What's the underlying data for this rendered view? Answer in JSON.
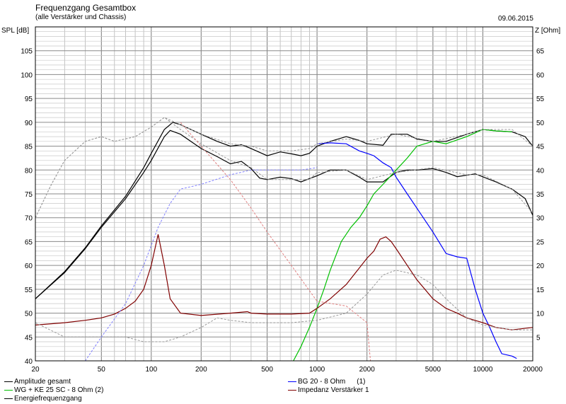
{
  "header": {
    "title": "Frequenzgang Gesamtbox",
    "subtitle": "(alle Verstärker und Chassis)",
    "date": "09.06.2015"
  },
  "chart_data": {
    "type": "line",
    "xscale": "log",
    "xlim": [
      20,
      20000
    ],
    "ylim_left": [
      40,
      110
    ],
    "ylim_right": [
      0,
      70
    ],
    "ylabel_left": "SPL [dB]",
    "ylabel_right": "Z [Ohm]",
    "x_ticks": [
      20,
      50,
      100,
      200,
      500,
      1000,
      2000,
      5000,
      10000,
      20000
    ],
    "x_tick_labels": [
      "20",
      "50",
      "100",
      "200",
      "500",
      "1000",
      "2000",
      "5000",
      "10000",
      "20000"
    ],
    "y_ticks_left": [
      40,
      45,
      50,
      55,
      60,
      65,
      70,
      75,
      80,
      85,
      90,
      95,
      100,
      105
    ],
    "y_tick_labels_left": [
      "40",
      "45",
      "50",
      "55",
      "60",
      "65",
      "70",
      "75",
      "80",
      "85",
      "90",
      "95",
      "100",
      "105"
    ],
    "y_ticks_right": [
      5,
      10,
      15,
      20,
      25,
      30,
      35,
      40,
      45,
      50,
      55,
      60,
      65
    ],
    "y_tick_labels_right": [
      "5",
      "10",
      "15",
      "20",
      "25",
      "30",
      "35",
      "40",
      "45",
      "50",
      "55",
      "60",
      "65"
    ],
    "grid": true,
    "legend_position": "bottom",
    "legend": [
      {
        "label": "Amplitude gesamt",
        "color": "#000000"
      },
      {
        "label": "BG 20 - 8 Ohm",
        "suffix": "(1)",
        "color": "#0000ff"
      },
      {
        "label": "WG + KE 25 SC - 8 Ohm (2)",
        "color": "#00c000"
      },
      {
        "label": "Impedanz Verstärker 1",
        "color": "#800000"
      },
      {
        "label": "Energiefrequenzgang",
        "color": "#000000"
      }
    ],
    "colors": {
      "amp": "#000000",
      "bg20": "#0000ff",
      "wg": "#00c000",
      "imp": "#800000",
      "dashed_grey": "#999999",
      "dashed_blue": "#8080ff",
      "dashed_red": "#e08080"
    },
    "series": [
      {
        "key": "amp",
        "axis": "left",
        "style": "solid",
        "points": [
          [
            20,
            53
          ],
          [
            30,
            58.7
          ],
          [
            40,
            63.7
          ],
          [
            50,
            68.3
          ],
          [
            70,
            74.5
          ],
          [
            90,
            80.5
          ],
          [
            100,
            83.5
          ],
          [
            120,
            88.5
          ],
          [
            135,
            90
          ],
          [
            150,
            89.5
          ],
          [
            200,
            87.5
          ],
          [
            250,
            86
          ],
          [
            300,
            85
          ],
          [
            350,
            85.3
          ],
          [
            400,
            84.5
          ],
          [
            500,
            83
          ],
          [
            600,
            83.8
          ],
          [
            700,
            83.4
          ],
          [
            800,
            83
          ],
          [
            900,
            83.5
          ],
          [
            1000,
            85
          ],
          [
            1200,
            86
          ],
          [
            1500,
            87
          ],
          [
            1800,
            86.2
          ],
          [
            2000,
            85.5
          ],
          [
            2500,
            85.2
          ],
          [
            2800,
            87.5
          ],
          [
            3500,
            87.5
          ],
          [
            4000,
            86.5
          ],
          [
            5000,
            86
          ],
          [
            6000,
            86
          ],
          [
            8000,
            87.5
          ],
          [
            10000,
            88.5
          ],
          [
            12000,
            88.2
          ],
          [
            15000,
            88
          ],
          [
            18000,
            87
          ],
          [
            20000,
            85
          ]
        ]
      },
      {
        "key": "energy",
        "axis": "left",
        "style": "solid",
        "points": [
          [
            20,
            53
          ],
          [
            30,
            58.5
          ],
          [
            40,
            63.5
          ],
          [
            50,
            68
          ],
          [
            70,
            74
          ],
          [
            90,
            79.5
          ],
          [
            100,
            82
          ],
          [
            120,
            87
          ],
          [
            130,
            88.3
          ],
          [
            150,
            87.5
          ],
          [
            200,
            84.5
          ],
          [
            250,
            82.8
          ],
          [
            300,
            81.3
          ],
          [
            350,
            81.8
          ],
          [
            400,
            80.3
          ],
          [
            450,
            78.3
          ],
          [
            500,
            78
          ],
          [
            600,
            78.5
          ],
          [
            700,
            78.2
          ],
          [
            800,
            77.5
          ],
          [
            900,
            78.2
          ],
          [
            1000,
            78.8
          ],
          [
            1200,
            80
          ],
          [
            1500,
            80
          ],
          [
            1800,
            78.5
          ],
          [
            2000,
            77.5
          ],
          [
            2500,
            77.5
          ],
          [
            3000,
            79.5
          ],
          [
            3500,
            80
          ],
          [
            4000,
            80
          ],
          [
            5000,
            80.3
          ],
          [
            6000,
            79.5
          ],
          [
            7000,
            78.6
          ],
          [
            9000,
            79.2
          ],
          [
            12000,
            77.5
          ],
          [
            15000,
            76
          ],
          [
            18000,
            74
          ],
          [
            20000,
            70.5
          ]
        ]
      },
      {
        "key": "bg20",
        "axis": "left",
        "style": "solid",
        "points": [
          [
            1000,
            85.5
          ],
          [
            1200,
            85.7
          ],
          [
            1500,
            85.5
          ],
          [
            1800,
            84
          ],
          [
            2000,
            83.5
          ],
          [
            2200,
            83
          ],
          [
            2500,
            81.5
          ],
          [
            2800,
            80.5
          ],
          [
            3000,
            78.5
          ],
          [
            3500,
            75
          ],
          [
            4000,
            72
          ],
          [
            5000,
            67
          ],
          [
            6000,
            62.5
          ],
          [
            7000,
            61.8
          ],
          [
            8000,
            61.5
          ],
          [
            9000,
            55
          ],
          [
            10000,
            50
          ],
          [
            11000,
            47
          ],
          [
            12000,
            44
          ],
          [
            13000,
            41.5
          ],
          [
            15000,
            41
          ],
          [
            16000,
            40.5
          ]
        ]
      },
      {
        "key": "wg",
        "axis": "left",
        "style": "solid",
        "points": [
          [
            720,
            40
          ],
          [
            800,
            43
          ],
          [
            900,
            47
          ],
          [
            1000,
            51
          ],
          [
            1100,
            55
          ],
          [
            1200,
            59
          ],
          [
            1400,
            65
          ],
          [
            1600,
            68
          ],
          [
            1800,
            70
          ],
          [
            2000,
            72.5
          ],
          [
            2200,
            75
          ],
          [
            2500,
            77
          ],
          [
            3000,
            80
          ],
          [
            3500,
            82.5
          ],
          [
            4000,
            85
          ],
          [
            5000,
            86
          ],
          [
            6000,
            85.5
          ],
          [
            8000,
            87
          ],
          [
            10000,
            88.5
          ],
          [
            12000,
            88.2
          ],
          [
            15000,
            88
          ]
        ]
      },
      {
        "key": "imp",
        "axis": "right",
        "style": "solid",
        "points": [
          [
            20,
            7.5
          ],
          [
            30,
            8
          ],
          [
            40,
            8.5
          ],
          [
            50,
            9
          ],
          [
            60,
            9.8
          ],
          [
            70,
            11
          ],
          [
            80,
            12.5
          ],
          [
            90,
            15
          ],
          [
            100,
            20
          ],
          [
            110,
            26.5
          ],
          [
            120,
            20
          ],
          [
            130,
            13
          ],
          [
            150,
            10
          ],
          [
            200,
            9.5
          ],
          [
            300,
            10
          ],
          [
            380,
            10.3
          ],
          [
            400,
            10
          ],
          [
            500,
            9.8
          ],
          [
            700,
            9.8
          ],
          [
            900,
            10
          ],
          [
            1000,
            11
          ],
          [
            1200,
            13
          ],
          [
            1500,
            16
          ],
          [
            2000,
            21.5
          ],
          [
            2200,
            23
          ],
          [
            2400,
            25.5
          ],
          [
            2600,
            26
          ],
          [
            2800,
            25
          ],
          [
            3000,
            23.5
          ],
          [
            3500,
            20
          ],
          [
            4000,
            17
          ],
          [
            5000,
            13
          ],
          [
            6000,
            11
          ],
          [
            7000,
            10
          ],
          [
            8000,
            9
          ],
          [
            10000,
            8
          ],
          [
            12000,
            7
          ],
          [
            15000,
            6.5
          ],
          [
            20000,
            7
          ]
        ]
      },
      {
        "key": "dash_grey_1",
        "axis": "left",
        "style": "dashed",
        "color": "dashed_grey",
        "points": [
          [
            20,
            70
          ],
          [
            25,
            77
          ],
          [
            30,
            82
          ],
          [
            40,
            86
          ],
          [
            50,
            87
          ],
          [
            60,
            86
          ],
          [
            80,
            87
          ],
          [
            100,
            89
          ],
          [
            120,
            91
          ],
          [
            150,
            89.5
          ],
          [
            200,
            87.5
          ],
          [
            300,
            85.5
          ],
          [
            400,
            85
          ],
          [
            500,
            84
          ],
          [
            700,
            84
          ],
          [
            900,
            84.5
          ],
          [
            1000,
            85.5
          ],
          [
            1500,
            86.5
          ],
          [
            2000,
            86
          ],
          [
            3000,
            87.5
          ],
          [
            5000,
            86
          ],
          [
            8000,
            87.5
          ],
          [
            10000,
            88.5
          ],
          [
            15000,
            88.5
          ],
          [
            20000,
            85
          ]
        ]
      },
      {
        "key": "dash_grey_2",
        "axis": "left",
        "style": "dashed",
        "color": "dashed_grey",
        "points": [
          [
            20,
            70
          ],
          [
            25,
            77
          ],
          [
            30,
            82
          ],
          [
            40,
            86
          ],
          [
            50,
            87
          ],
          [
            60,
            86
          ],
          [
            80,
            87
          ],
          [
            100,
            89
          ],
          [
            120,
            91
          ],
          [
            150,
            88.5
          ],
          [
            200,
            85.5
          ],
          [
            300,
            82
          ],
          [
            400,
            80.5
          ],
          [
            500,
            78
          ],
          [
            700,
            78
          ],
          [
            900,
            78
          ],
          [
            1000,
            79.5
          ],
          [
            1500,
            80
          ],
          [
            2000,
            78
          ],
          [
            3000,
            79.5
          ],
          [
            5000,
            80.5
          ],
          [
            8000,
            79
          ],
          [
            10000,
            79
          ],
          [
            15000,
            76
          ],
          [
            20000,
            71
          ]
        ]
      },
      {
        "key": "dash_grey_imp",
        "axis": "right",
        "style": "dashed",
        "color": "dashed_grey",
        "points": [
          [
            20,
            8
          ],
          [
            30,
            5
          ],
          [
            50,
            5
          ],
          [
            70,
            5
          ],
          [
            90,
            4
          ],
          [
            120,
            4
          ],
          [
            150,
            5
          ],
          [
            200,
            7
          ],
          [
            250,
            9
          ],
          [
            300,
            8.5
          ],
          [
            400,
            8
          ],
          [
            500,
            8
          ],
          [
            700,
            8
          ],
          [
            1000,
            8.5
          ],
          [
            1500,
            10
          ],
          [
            2000,
            14
          ],
          [
            2500,
            18
          ],
          [
            3000,
            19
          ],
          [
            4000,
            18
          ],
          [
            5000,
            16
          ],
          [
            6000,
            13
          ],
          [
            8000,
            9
          ],
          [
            10000,
            7.5
          ],
          [
            15000,
            6.5
          ],
          [
            20000,
            6.5
          ]
        ]
      },
      {
        "key": "dash_blue",
        "axis": "left",
        "style": "dashed",
        "color": "dashed_blue",
        "points": [
          [
            40,
            40
          ],
          [
            50,
            45
          ],
          [
            70,
            52
          ],
          [
            90,
            60
          ],
          [
            110,
            68
          ],
          [
            130,
            73
          ],
          [
            150,
            76
          ],
          [
            200,
            77
          ],
          [
            300,
            79
          ],
          [
            400,
            80
          ],
          [
            500,
            80
          ],
          [
            800,
            80
          ],
          [
            1000,
            80.5
          ]
        ]
      },
      {
        "key": "dash_red",
        "axis": "left",
        "style": "dashed",
        "color": "dashed_red",
        "points": [
          [
            150,
            90
          ],
          [
            200,
            85
          ],
          [
            300,
            78
          ],
          [
            400,
            72
          ],
          [
            500,
            67
          ],
          [
            700,
            60
          ],
          [
            1000,
            52.5
          ],
          [
            1500,
            51.5
          ],
          [
            2000,
            48
          ],
          [
            2100,
            40
          ]
        ]
      }
    ]
  }
}
